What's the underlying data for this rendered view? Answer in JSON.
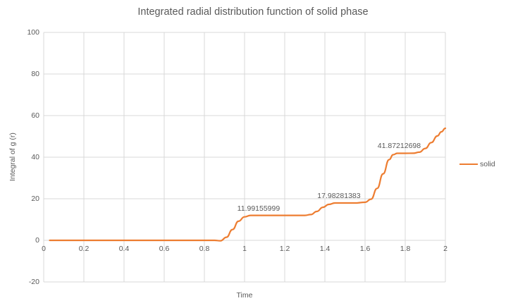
{
  "colors": {
    "line": "#ED7D31",
    "grid": "#D9D9D9",
    "text": "#595959",
    "background": "#FFFFFF"
  },
  "legend": {
    "position": "right",
    "entries": [
      {
        "label": "solid",
        "color": "#ED7D31"
      }
    ]
  },
  "chart_data": {
    "type": "line",
    "title": "Integrated radial distribution function of solid phase",
    "xlabel": "Time",
    "ylabel": "Integral of g (r)",
    "xlim": [
      0,
      2
    ],
    "ylim": [
      -20,
      100
    ],
    "grid": true,
    "legend_position": "right",
    "x_ticks": [
      {
        "label": "0",
        "value": 0
      },
      {
        "label": "0.2",
        "value": 0.2
      },
      {
        "label": "0.4",
        "value": 0.4
      },
      {
        "label": "0.6",
        "value": 0.6
      },
      {
        "label": "0.8",
        "value": 0.8
      },
      {
        "label": "1",
        "value": 1
      },
      {
        "label": "1.2",
        "value": 1.2
      },
      {
        "label": "1.4",
        "value": 1.4
      },
      {
        "label": "1.6",
        "value": 1.6
      },
      {
        "label": "1.8",
        "value": 1.8
      },
      {
        "label": "2",
        "value": 2
      }
    ],
    "y_ticks": [
      {
        "label": "100",
        "value": 100
      },
      {
        "label": "80",
        "value": 80
      },
      {
        "label": "60",
        "value": 60
      },
      {
        "label": "40",
        "value": 40
      },
      {
        "label": "20",
        "value": 20
      },
      {
        "label": "0",
        "value": 0
      },
      {
        "label": "-20",
        "value": -20
      }
    ],
    "series": [
      {
        "name": "solid",
        "color": "#ED7D31",
        "smooth": true,
        "points": [
          [
            0.03,
            0
          ],
          [
            0.1,
            0
          ],
          [
            0.2,
            0
          ],
          [
            0.3,
            0
          ],
          [
            0.4,
            0
          ],
          [
            0.5,
            0
          ],
          [
            0.6,
            0
          ],
          [
            0.7,
            0
          ],
          [
            0.8,
            0
          ],
          [
            0.85,
            0
          ],
          [
            0.88,
            -0.2
          ],
          [
            0.91,
            1.5
          ],
          [
            0.94,
            5.2
          ],
          [
            0.97,
            9.2
          ],
          [
            1.0,
            11.3
          ],
          [
            1.03,
            11.99
          ],
          [
            1.1,
            11.99
          ],
          [
            1.2,
            11.99
          ],
          [
            1.3,
            12.0
          ],
          [
            1.33,
            12.4
          ],
          [
            1.36,
            13.9
          ],
          [
            1.39,
            15.9
          ],
          [
            1.42,
            17.3
          ],
          [
            1.45,
            17.95
          ],
          [
            1.5,
            17.98
          ],
          [
            1.55,
            17.98
          ],
          [
            1.6,
            18.3
          ],
          [
            1.63,
            19.8
          ],
          [
            1.66,
            25.0
          ],
          [
            1.69,
            32.0
          ],
          [
            1.72,
            38.8
          ],
          [
            1.74,
            41.2
          ],
          [
            1.76,
            41.87
          ],
          [
            1.8,
            41.87
          ],
          [
            1.84,
            41.9
          ],
          [
            1.87,
            42.4
          ],
          [
            1.9,
            44.2
          ],
          [
            1.93,
            47.0
          ],
          [
            1.96,
            50.2
          ],
          [
            1.98,
            52.2
          ],
          [
            2.0,
            53.9
          ]
        ]
      }
    ],
    "data_labels": [
      {
        "text": "11.99155999",
        "t": 1.07,
        "v": 11.99
      },
      {
        "text": "17.98281383",
        "t": 1.47,
        "v": 17.98
      },
      {
        "text": "41.87212698",
        "t": 1.77,
        "v": 41.87
      }
    ]
  }
}
